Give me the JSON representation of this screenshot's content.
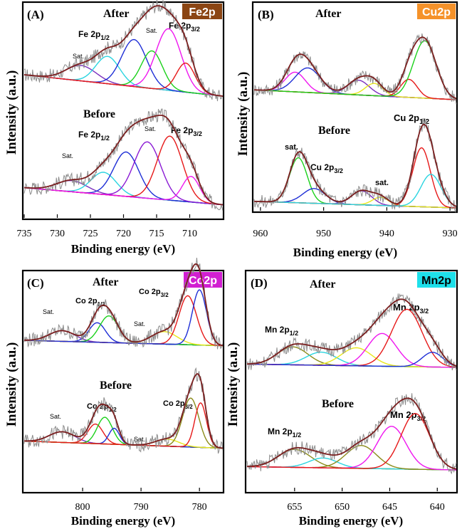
{
  "chart_data": [
    {
      "id": "A",
      "type": "line",
      "panel_label": "(A)",
      "element_badge": "Fe2p",
      "badge_color": "#8b4513",
      "badge_text_color": "#ffffff",
      "xlabel": "Binding energy (eV)",
      "ylabel": "Intensity (a.u.)",
      "xlim": [
        735,
        705
      ],
      "x_ticks": [
        735,
        730,
        725,
        720,
        715,
        710
      ],
      "grid": false,
      "legend": "none",
      "blocks": [
        {
          "label": "After",
          "baseline_start": 0.25,
          "baseline_end": 0.0,
          "peaks": [
            {
              "label": "Sat.",
              "center": 726.4,
              "height": 0.18,
              "width": 2.3,
              "color": "#7b2fbe"
            },
            {
              "label": "Fe 2p1/2 sat.",
              "center": 722.4,
              "height": 0.32,
              "width": 1.8,
              "color": "#2ad4e0"
            },
            {
              "label": "Fe 2p1/2",
              "center": 718.4,
              "height": 0.55,
              "width": 1.9,
              "color": "#1f2fd6"
            },
            {
              "label": "Sat.",
              "center": 715.7,
              "height": 0.44,
              "width": 1.6,
              "color": "#1bd11b"
            },
            {
              "label": "Fe 2p3/2",
              "center": 713.2,
              "height": 0.72,
              "width": 1.9,
              "color": "#ef16ef"
            },
            {
              "label": "Fe 2p3/2",
              "center": 710.6,
              "height": 0.34,
              "width": 1.4,
              "color": "#e61919"
            }
          ]
        },
        {
          "label": "Before",
          "baseline_start": 0.22,
          "baseline_end": 0.02,
          "peaks": [
            {
              "label": "Sat.",
              "center": 727.8,
              "height": 0.13,
              "width": 2.3,
              "color": "#7b2fbe"
            },
            {
              "label": "Fe 2p1/2 sat.",
              "center": 723.0,
              "height": 0.26,
              "width": 1.9,
              "color": "#2ad4e0"
            },
            {
              "label": "Fe 2p1/2",
              "center": 719.6,
              "height": 0.52,
              "width": 1.9,
              "color": "#1f2fd6"
            },
            {
              "label": "Sat.",
              "center": 716.4,
              "height": 0.66,
              "width": 2.0,
              "color": "#8a1ad4"
            },
            {
              "label": "Fe 2p3/2",
              "center": 713.0,
              "height": 0.75,
              "width": 1.9,
              "color": "#e61919"
            },
            {
              "label": "Fe 2p3/2",
              "center": 709.8,
              "height": 0.3,
              "width": 1.3,
              "color": "#ef16ef"
            }
          ]
        }
      ],
      "annotations": [
        "After",
        "Before",
        "Fe 2p",
        "1/2",
        "Sat.",
        "Fe 2p",
        "3/2",
        "Sat.",
        "Fe 2p",
        "1/2",
        "Sat.",
        "Sat.",
        "Fe 2p",
        "3/2"
      ]
    },
    {
      "id": "B",
      "type": "line",
      "panel_label": "(B)",
      "element_badge": "Cu2p",
      "badge_color": "#f5922a",
      "badge_text_color": "#ffffff",
      "xlabel": "Binding energy (eV)",
      "ylabel": "Intensity (a.u.)",
      "xlim": [
        961,
        929
      ],
      "x_ticks": [
        960,
        950,
        940,
        930
      ],
      "grid": false,
      "legend": "none",
      "blocks": [
        {
          "label": "After",
          "baseline_start": 0.12,
          "baseline_end": 0.0,
          "peaks": [
            {
              "label": "Cu 2p1/2",
              "center": 954.5,
              "height": 0.24,
              "width": 1.6,
              "color": "#ef16ef"
            },
            {
              "label": "Cu 2p1/2",
              "center": 952.5,
              "height": 0.3,
              "width": 2.0,
              "color": "#1f2fd6"
            },
            {
              "label": "sat.",
              "center": 944.5,
              "height": 0.18,
              "width": 1.7,
              "color": "#7b2fbe"
            },
            {
              "label": "sat.",
              "center": 942.0,
              "height": 0.15,
              "width": 1.4,
              "color": "#e8e81a"
            },
            {
              "label": "Cu 2p3/2",
              "center": 936.5,
              "height": 0.22,
              "width": 1.3,
              "color": "#e61919"
            },
            {
              "label": "Cu 2p3/2",
              "center": 934.0,
              "height": 0.7,
              "width": 1.8,
              "color": "#1bd11b"
            }
          ]
        },
        {
          "label": "Before",
          "baseline_start": 0.08,
          "baseline_end": 0.0,
          "peaks": [
            {
              "label": "sat.",
              "center": 954.0,
              "height": 0.55,
              "width": 1.4,
              "color": "#1bd11b"
            },
            {
              "label": "Cu 2p3/2",
              "center": 951.5,
              "height": 0.18,
              "width": 1.8,
              "color": "#1f2fd6"
            },
            {
              "label": "sat.",
              "center": 944.0,
              "height": 0.17,
              "width": 1.6,
              "color": "#7b2fbe"
            },
            {
              "label": "sat.",
              "center": 941.0,
              "height": 0.1,
              "width": 1.3,
              "color": "#e8e81a"
            },
            {
              "label": "Cu 2p1/2",
              "center": 934.5,
              "height": 0.72,
              "width": 1.4,
              "color": "#e61919"
            },
            {
              "label": "Cu 2p1/2",
              "center": 933.0,
              "height": 0.4,
              "width": 1.6,
              "color": "#2ad4e0"
            }
          ]
        }
      ],
      "annotations": [
        "After",
        "Before",
        "sat.",
        "Cu 2p",
        "3/2",
        "sat.",
        "Cu 2p",
        "1/2"
      ]
    },
    {
      "id": "C",
      "type": "line",
      "panel_label": "(C)",
      "element_badge": "Co2p",
      "badge_color": "#d11fd1",
      "badge_text_color": "#ffffff",
      "xlabel": "Binding energy (eV)",
      "ylabel": "Intensity (a.u.)",
      "xlim": [
        810,
        776
      ],
      "x_ticks": [
        800,
        790,
        780
      ],
      "grid": false,
      "legend": "none",
      "blocks": [
        {
          "label": "After",
          "baseline_start": 0.08,
          "baseline_end": 0.02,
          "peaks": [
            {
              "label": "Sat.",
              "center": 803.5,
              "height": 0.12,
              "width": 2.2,
              "color": "#7b2fbe"
            },
            {
              "label": "Co 2p1/2",
              "center": 797.5,
              "height": 0.22,
              "width": 1.4,
              "color": "#1f2fd6"
            },
            {
              "label": "Co 2p1/2",
              "center": 795.5,
              "height": 0.3,
              "width": 1.6,
              "color": "#1bd11b"
            },
            {
              "label": "Sat.",
              "center": 786.0,
              "height": 0.14,
              "width": 2.2,
              "color": "#e8e81a"
            },
            {
              "label": "Co 2p3/2",
              "center": 782.0,
              "height": 0.55,
              "width": 1.5,
              "color": "#e61919"
            },
            {
              "label": "Co 2p3/2",
              "center": 780.0,
              "height": 0.62,
              "width": 1.2,
              "color": "#1f2fd6"
            }
          ]
        },
        {
          "label": "Before",
          "baseline_start": 0.1,
          "baseline_end": 0.02,
          "peaks": [
            {
              "label": "Sat.",
              "center": 803.5,
              "height": 0.12,
              "width": 2.2,
              "color": "#7b2fbe"
            },
            {
              "label": "Co 2p1/2",
              "center": 797.8,
              "height": 0.22,
              "width": 1.3,
              "color": "#e61919"
            },
            {
              "label": "Co 2p1/2",
              "center": 796.2,
              "height": 0.3,
              "width": 1.3,
              "color": "#1bd11b"
            },
            {
              "label": "Co 2p1/2",
              "center": 794.6,
              "height": 0.18,
              "width": 0.9,
              "color": "#1f2fd6"
            },
            {
              "label": "Sat.",
              "center": 785.5,
              "height": 0.08,
              "width": 2.0,
              "color": "#e8e81a"
            },
            {
              "label": "Co 2p3/2",
              "center": 781.5,
              "height": 0.55,
              "width": 1.4,
              "color": "#8b8b1a"
            },
            {
              "label": "Co 2p3/2",
              "center": 779.8,
              "height": 0.5,
              "width": 1.0,
              "color": "#e61919"
            }
          ]
        }
      ],
      "annotations": [
        "After",
        "Before",
        "Sat.",
        "Co 2p",
        "1/2",
        "Co 2p",
        "3/2",
        "Sat.",
        "Sat.",
        "Co 2p",
        "1/2",
        "Sat.",
        "Co 2p",
        "3/2"
      ]
    },
    {
      "id": "D",
      "type": "line",
      "panel_label": "(D)",
      "element_badge": "Mn2p",
      "badge_color": "#1ee0ea",
      "badge_text_color": "#000000",
      "xlabel": "Binding energy (eV)",
      "ylabel": "Intensity (a.u.)",
      "xlim": [
        660,
        638
      ],
      "x_ticks": [
        655,
        650,
        645,
        640
      ],
      "grid": false,
      "legend": "none",
      "blocks": [
        {
          "label": "After",
          "baseline_start": 0.04,
          "baseline_end": 0.0,
          "peaks": [
            {
              "label": "Mn 2p1/2",
              "center": 655.2,
              "height": 0.22,
              "width": 1.6,
              "color": "#8b8b1a"
            },
            {
              "label": "Mn 2p1/2",
              "center": 652.2,
              "height": 0.16,
              "width": 1.6,
              "color": "#2ad4e0"
            },
            {
              "label": "Mn 2p1/2",
              "center": 648.5,
              "height": 0.22,
              "width": 1.6,
              "color": "#e8e81a"
            },
            {
              "label": "Mn 2p3/2",
              "center": 645.8,
              "height": 0.4,
              "width": 1.5,
              "color": "#ef16ef"
            },
            {
              "label": "Mn 2p3/2",
              "center": 643.2,
              "height": 0.7,
              "width": 1.6,
              "color": "#e61919"
            },
            {
              "label": "Mn 2p3/2",
              "center": 640.5,
              "height": 0.18,
              "width": 1.1,
              "color": "#1f2fd6"
            }
          ]
        },
        {
          "label": "Before",
          "baseline_start": 0.04,
          "baseline_end": 0.0,
          "peaks": [
            {
              "label": "Mn 2p1/2",
              "center": 655.0,
              "height": 0.22,
              "width": 1.7,
              "color": "#8b8b1a"
            },
            {
              "label": "Mn 2p1/2",
              "center": 652.0,
              "height": 0.12,
              "width": 1.5,
              "color": "#2ad4e0"
            },
            {
              "label": "Mn 2p1/2",
              "center": 648.0,
              "height": 0.28,
              "width": 1.6,
              "color": "#8b8b1a"
            },
            {
              "label": "Mn 2p3/2",
              "center": 644.8,
              "height": 0.52,
              "width": 1.5,
              "color": "#ef16ef"
            },
            {
              "label": "Mn 2p3/2",
              "center": 642.3,
              "height": 0.68,
              "width": 1.5,
              "color": "#e61919"
            }
          ]
        }
      ],
      "annotations": [
        "After",
        "Before",
        "Mn 2p",
        "1/2",
        "Mn 2p",
        "3/2",
        "Mn 2p",
        "1/2",
        "Mn 2p",
        "3/2"
      ]
    }
  ]
}
